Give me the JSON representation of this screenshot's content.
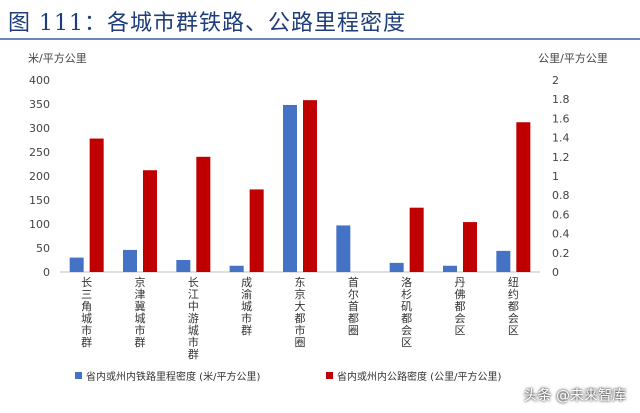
{
  "figure_title": "图 111：各城市群铁路、公路里程密度",
  "watermark": "头条 @未来智库",
  "chart_data": {
    "type": "bar",
    "title": "",
    "ylabel_left": "米/平方公里",
    "ylabel_right": "公里/平方公里",
    "ylim_left": [
      0,
      400
    ],
    "ylim_right": [
      0,
      2
    ],
    "yticks_left": [
      "0",
      "50",
      "100",
      "150",
      "200",
      "250",
      "300",
      "350",
      "400"
    ],
    "yticks_right": [
      "0",
      "0.2",
      "0.4",
      "0.6",
      "0.8",
      "1",
      "1.2",
      "1.4",
      "1.6",
      "1.8",
      "2"
    ],
    "grid": false,
    "legend_position": "bottom",
    "categories": [
      "长三角城市群",
      "京津冀城市群",
      "长江中游城市群",
      "成渝城市群",
      "东京大都市圈",
      "首尔首都圈",
      "洛杉矶都会区",
      "丹佛都会区",
      "纽约都会区"
    ],
    "series": [
      {
        "name": "省内或州内铁路里程密度 (米/平方公里)",
        "axis": "left",
        "color": "#4472c4",
        "values": [
          30,
          46,
          25,
          13,
          348,
          97,
          19,
          13,
          44
        ]
      },
      {
        "name": "省内或州内公路密度 (公里/平方公里)",
        "axis": "right",
        "color": "#c00000",
        "values": [
          1.39,
          1.06,
          1.2,
          0.86,
          1.79,
          0,
          0.67,
          0.52,
          1.56
        ]
      }
    ]
  }
}
